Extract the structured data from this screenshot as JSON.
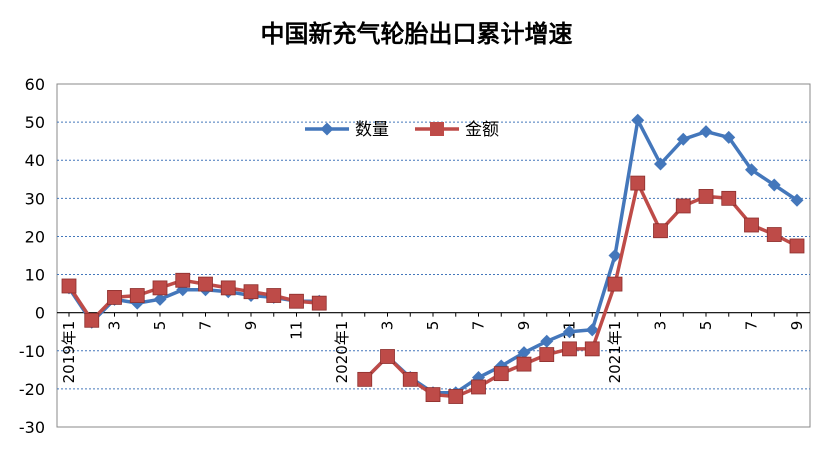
{
  "chart_data": {
    "type": "line",
    "title": "中国新充气轮胎出口累计增速",
    "xlabel": "",
    "ylabel": "",
    "ylim": [
      -30,
      60
    ],
    "yticks": [
      60,
      50,
      40,
      30,
      20,
      10,
      0,
      -10,
      -20,
      -30
    ],
    "grid": true,
    "legend_position": "top-center",
    "x_tick_labels": [
      "2019年1",
      "3",
      "5",
      "7",
      "9",
      "11",
      "2020年1",
      "3",
      "5",
      "7",
      "9",
      "11",
      "2021年1",
      "3",
      "5",
      "7",
      "9"
    ],
    "x": [
      "2019-01",
      "2019-02",
      "2019-03",
      "2019-04",
      "2019-05",
      "2019-06",
      "2019-07",
      "2019-08",
      "2019-09",
      "2019-10",
      "2019-11",
      "2019-12",
      "2020-01",
      "2020-02",
      "2020-03",
      "2020-04",
      "2020-05",
      "2020-06",
      "2020-07",
      "2020-08",
      "2020-09",
      "2020-10",
      "2020-11",
      "2020-12",
      "2021-01",
      "2021-02",
      "2021-03",
      "2021-04",
      "2021-05",
      "2021-06",
      "2021-07",
      "2021-08",
      "2021-09"
    ],
    "series": [
      {
        "name": "数量",
        "color": "#4477bb",
        "marker": "diamond",
        "values": [
          6.5,
          -2.5,
          3.5,
          2.5,
          3.5,
          6.0,
          6.0,
          5.5,
          4.5,
          4.0,
          3.0,
          3.0,
          null,
          -17.5,
          -11.5,
          -17.0,
          -21.0,
          -21.0,
          -17.0,
          -14.0,
          -10.5,
          -7.5,
          -5.0,
          -4.5,
          15.0,
          50.5,
          39.0,
          45.5,
          47.5,
          46.0,
          37.5,
          33.5,
          29.5
        ]
      },
      {
        "name": "金额",
        "color": "#be4b48",
        "marker": "square",
        "values": [
          7.0,
          -2.0,
          4.0,
          4.5,
          6.5,
          8.5,
          7.5,
          6.5,
          5.5,
          4.5,
          3.0,
          2.5,
          null,
          -17.5,
          -11.5,
          -17.5,
          -21.5,
          -22.0,
          -19.5,
          -16.0,
          -13.5,
          -11.0,
          -9.5,
          -9.5,
          7.5,
          34.0,
          21.5,
          28.0,
          30.5,
          30.0,
          23.0,
          20.5,
          17.5
        ]
      }
    ]
  },
  "colors": {
    "axis": "#000000",
    "grid": "#4477bb"
  }
}
